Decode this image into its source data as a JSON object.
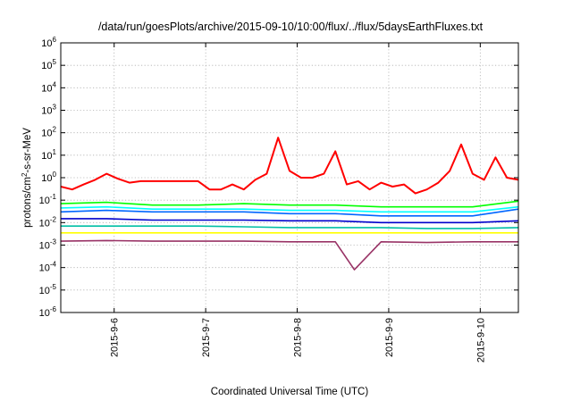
{
  "chart_data": {
    "type": "line",
    "title": "/data/run/goesPlots/archive/2015-09-10/10:00/flux/../flux/5daysEarthFluxes.txt",
    "xlabel": "Coordinated Universal Time (UTC)",
    "ylabel_main": "protons/cm",
    "ylabel_sup": "2",
    "ylabel_tail": "-s-sr-MeV",
    "yscale": "log",
    "ylim": [
      1e-06,
      1000000.0
    ],
    "xlim": [
      "2015-09-05T10:00",
      "2015-09-10T10:00"
    ],
    "grid": true,
    "y_ticks": [
      {
        "value": 1e-06,
        "base": "10",
        "exp": "-6"
      },
      {
        "value": 1e-05,
        "base": "10",
        "exp": "-5"
      },
      {
        "value": 0.0001,
        "base": "10",
        "exp": "-4"
      },
      {
        "value": 0.001,
        "base": "10",
        "exp": "-3"
      },
      {
        "value": 0.01,
        "base": "10",
        "exp": "-2"
      },
      {
        "value": 0.1,
        "base": "10",
        "exp": "-1"
      },
      {
        "value": 1,
        "base": "10",
        "exp": "0"
      },
      {
        "value": 10,
        "base": "10",
        "exp": "1"
      },
      {
        "value": 100,
        "base": "10",
        "exp": "2"
      },
      {
        "value": 1000,
        "base": "10",
        "exp": "3"
      },
      {
        "value": 10000,
        "base": "10",
        "exp": "4"
      },
      {
        "value": 100000,
        "base": "10",
        "exp": "5"
      },
      {
        "value": 1000000,
        "base": "10",
        "exp": "6"
      }
    ],
    "x_ticks": [
      {
        "value": "2015-09-06T00:00",
        "label": "2015-9-6"
      },
      {
        "value": "2015-09-07T00:00",
        "label": "2015-9-7"
      },
      {
        "value": "2015-09-08T00:00",
        "label": "2015-9-8"
      },
      {
        "value": "2015-09-09T00:00",
        "label": "2015-9-9"
      },
      {
        "value": "2015-09-10T00:00",
        "label": "2015-9-10"
      }
    ],
    "series": [
      {
        "color": "#ff0000",
        "x": [
          "2015-09-05T10:00",
          "2015-09-05T13:00",
          "2015-09-05T16:00",
          "2015-09-05T19:00",
          "2015-09-05T22:00",
          "2015-09-06T01:00",
          "2015-09-06T04:00",
          "2015-09-06T07:00",
          "2015-09-06T10:00",
          "2015-09-06T13:00",
          "2015-09-06T16:00",
          "2015-09-06T19:00",
          "2015-09-06T22:00",
          "2015-09-07T01:00",
          "2015-09-07T04:00",
          "2015-09-07T07:00",
          "2015-09-07T10:00",
          "2015-09-07T13:00",
          "2015-09-07T16:00",
          "2015-09-07T19:00",
          "2015-09-07T22:00",
          "2015-09-08T01:00",
          "2015-09-08T04:00",
          "2015-09-08T07:00",
          "2015-09-08T10:00",
          "2015-09-08T13:00",
          "2015-09-08T16:00",
          "2015-09-08T19:00",
          "2015-09-08T22:00",
          "2015-09-09T01:00",
          "2015-09-09T04:00",
          "2015-09-09T07:00",
          "2015-09-09T10:00",
          "2015-09-09T13:00",
          "2015-09-09T16:00",
          "2015-09-09T19:00",
          "2015-09-09T22:00",
          "2015-09-10T01:00",
          "2015-09-10T04:00",
          "2015-09-10T07:00",
          "2015-09-10T10:00"
        ],
        "y": [
          0.4,
          0.3,
          0.5,
          0.8,
          1.5,
          0.9,
          0.6,
          0.7,
          0.7,
          0.7,
          0.7,
          0.7,
          0.7,
          0.3,
          0.3,
          0.5,
          0.3,
          0.8,
          1.5,
          60,
          2,
          1,
          1,
          1.5,
          15,
          0.5,
          0.7,
          0.3,
          0.6,
          0.4,
          0.5,
          0.2,
          0.3,
          0.6,
          2,
          30,
          1.5,
          0.8,
          8,
          1,
          0.8
        ]
      },
      {
        "color": "#00ff00",
        "x": [
          "2015-09-05T10:00",
          "2015-09-05T22:00",
          "2015-09-06T10:00",
          "2015-09-06T22:00",
          "2015-09-07T10:00",
          "2015-09-07T22:00",
          "2015-09-08T10:00",
          "2015-09-08T22:00",
          "2015-09-09T10:00",
          "2015-09-09T22:00",
          "2015-09-10T10:00"
        ],
        "y": [
          0.07,
          0.08,
          0.06,
          0.06,
          0.07,
          0.06,
          0.06,
          0.05,
          0.05,
          0.05,
          0.09
        ]
      },
      {
        "color": "#00ffff",
        "x": [
          "2015-09-05T10:00",
          "2015-09-05T22:00",
          "2015-09-06T10:00",
          "2015-09-06T22:00",
          "2015-09-07T10:00",
          "2015-09-07T22:00",
          "2015-09-08T10:00",
          "2015-09-08T22:00",
          "2015-09-09T10:00",
          "2015-09-09T22:00",
          "2015-09-10T10:00"
        ],
        "y": [
          0.045,
          0.05,
          0.04,
          0.04,
          0.04,
          0.035,
          0.035,
          0.03,
          0.03,
          0.03,
          0.05
        ]
      },
      {
        "color": "#0066ff",
        "x": [
          "2015-09-05T10:00",
          "2015-09-05T22:00",
          "2015-09-06T10:00",
          "2015-09-06T22:00",
          "2015-09-07T10:00",
          "2015-09-07T22:00",
          "2015-09-08T10:00",
          "2015-09-08T22:00",
          "2015-09-09T10:00",
          "2015-09-09T22:00",
          "2015-09-10T10:00"
        ],
        "y": [
          0.03,
          0.035,
          0.03,
          0.03,
          0.03,
          0.025,
          0.025,
          0.02,
          0.02,
          0.02,
          0.04
        ]
      },
      {
        "color": "#0000cc",
        "x": [
          "2015-09-05T10:00",
          "2015-09-05T22:00",
          "2015-09-06T10:00",
          "2015-09-06T22:00",
          "2015-09-07T10:00",
          "2015-09-07T22:00",
          "2015-09-08T10:00",
          "2015-09-08T22:00",
          "2015-09-09T10:00",
          "2015-09-09T22:00",
          "2015-09-10T10:00"
        ],
        "y": [
          0.015,
          0.015,
          0.013,
          0.013,
          0.013,
          0.012,
          0.012,
          0.01,
          0.01,
          0.01,
          0.012
        ]
      },
      {
        "color": "#00bfa5",
        "x": [
          "2015-09-05T10:00",
          "2015-09-05T22:00",
          "2015-09-06T10:00",
          "2015-09-06T22:00",
          "2015-09-07T10:00",
          "2015-09-07T22:00",
          "2015-09-08T10:00",
          "2015-09-08T22:00",
          "2015-09-09T10:00",
          "2015-09-09T22:00",
          "2015-09-10T10:00"
        ],
        "y": [
          0.007,
          0.007,
          0.007,
          0.007,
          0.0065,
          0.006,
          0.006,
          0.006,
          0.0055,
          0.0055,
          0.006
        ]
      },
      {
        "color": "#ffff00",
        "x": [
          "2015-09-05T10:00",
          "2015-09-06T22:00",
          "2015-09-08T10:00",
          "2015-09-09T22:00",
          "2015-09-10T10:00"
        ],
        "y": [
          0.0035,
          0.0035,
          0.0035,
          0.0035,
          0.0035
        ]
      },
      {
        "color": "#993366",
        "x": [
          "2015-09-05T10:00",
          "2015-09-05T22:00",
          "2015-09-06T10:00",
          "2015-09-06T22:00",
          "2015-09-07T10:00",
          "2015-09-07T22:00",
          "2015-09-08T10:00",
          "2015-09-08T15:00",
          "2015-09-08T22:00",
          "2015-09-09T10:00",
          "2015-09-09T22:00",
          "2015-09-10T10:00"
        ],
        "y": [
          0.0015,
          0.0016,
          0.0015,
          0.0015,
          0.0015,
          0.0014,
          0.0014,
          8e-05,
          0.0014,
          0.0013,
          0.0014,
          0.0014
        ]
      }
    ]
  }
}
